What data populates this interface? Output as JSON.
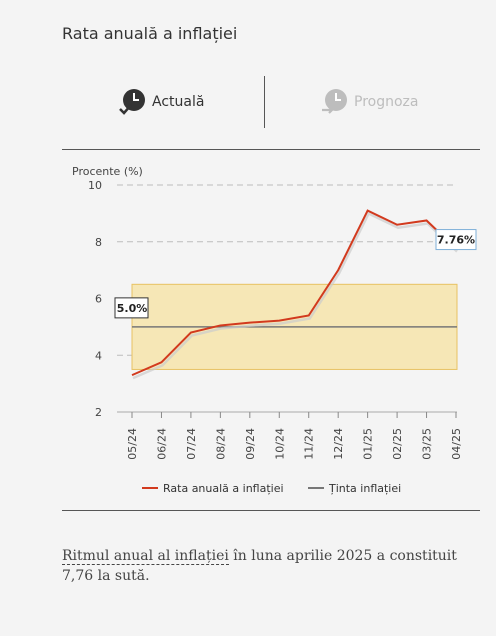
{
  "page": {
    "title": "Rata anuală a inflației"
  },
  "tabs": [
    {
      "label": "Actuală",
      "icon": "clock-check-icon",
      "active": true
    },
    {
      "label": "Prognoza",
      "icon": "clock-forecast-icon",
      "active": false
    }
  ],
  "colors": {
    "line": "#d23a1e",
    "target": "#777777",
    "band": "#f6e7b6",
    "band_border": "#e8c262",
    "active": "#333333",
    "inactive": "#bdbdbd"
  },
  "chart_data": {
    "type": "line",
    "ylabel": "Procente (%)",
    "ylim": [
      2,
      10
    ],
    "yticks": [
      2,
      4,
      6,
      8,
      10
    ],
    "grid": true,
    "categories": [
      "05/24",
      "06/24",
      "07/24",
      "08/24",
      "09/24",
      "10/24",
      "11/24",
      "12/24",
      "01/25",
      "02/25",
      "03/25",
      "04/25"
    ],
    "series": [
      {
        "name": "Rata anuală a inflației",
        "values": [
          3.3,
          3.75,
          4.8,
          5.05,
          5.15,
          5.22,
          5.4,
          7.0,
          9.1,
          8.6,
          8.75,
          7.76
        ],
        "end_label": "7.76%"
      },
      {
        "name": "Ținta inflației",
        "values": [
          5,
          5,
          5,
          5,
          5,
          5,
          5,
          5,
          5,
          5,
          5,
          5
        ],
        "label": "5.0%"
      }
    ],
    "band": [
      3.5,
      6.5
    ],
    "legend_position": "bottom"
  },
  "note": {
    "link_text": "Ritmul anual al inflației",
    "rest_text": " în luna aprilie 2025 a constituit 7,76 la sută."
  }
}
